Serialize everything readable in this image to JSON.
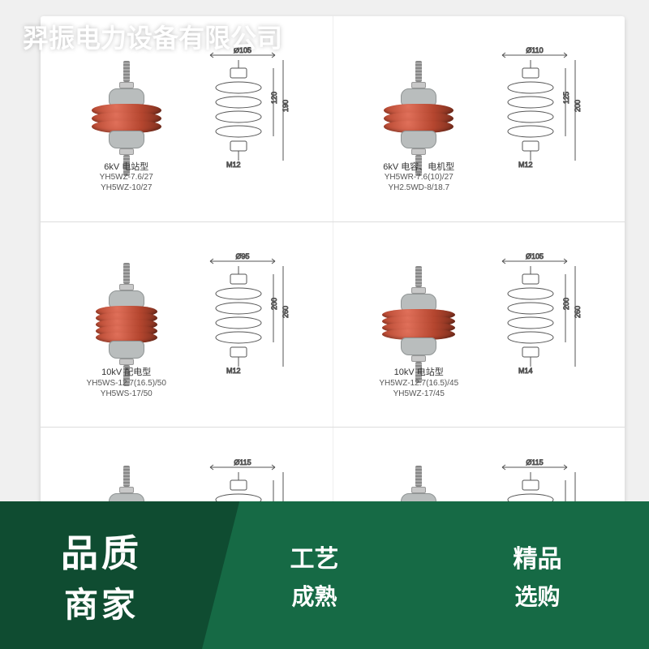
{
  "watermark": "羿振电力设备有限公司",
  "colors": {
    "shed": "#b5462f",
    "cap": "#b9bdbd",
    "cardBg": "#ffffff",
    "divider": "#dcdcdc",
    "promoDark": "#0f4c31",
    "promoLight": "#166a45",
    "techLine": "#555555"
  },
  "products": [
    {
      "sheds": 3,
      "captionType": "6kV 电站型",
      "captionModels": "YH5WZ-7.6/27\nYH5WZ-10/27",
      "tech": {
        "topDia": "Ø105",
        "h1": "120",
        "h2": "190",
        "bolt": "M12"
      }
    },
    {
      "sheds": 3,
      "captionType": "6kV 电容、电机型",
      "captionModels": "YH5WR-7.6(10)/27\nYH2.5WD-8/18.7",
      "tech": {
        "topDia": "Ø110",
        "h1": "125",
        "h2": "200",
        "bolt": "M12"
      }
    },
    {
      "sheds": 5,
      "captionType": "10kV 配电型",
      "captionModels": "YH5WS-12.7(16.5)/50\nYH5WS-17/50",
      "tech": {
        "topDia": "Ø95",
        "h1": "200",
        "h2": "260",
        "bolt": "M12"
      }
    },
    {
      "sheds": 4,
      "captionType": "10kV 电站型",
      "captionModels": "YH5WZ-12.7(16.5)/45\nYH5WZ-17/45",
      "tech": {
        "topDia": "Ø105",
        "h1": "200",
        "h2": "260",
        "bolt": "M14"
      }
    },
    {
      "sheds": 6,
      "captionType": "",
      "captionModels": "",
      "tech": {
        "topDia": "Ø115",
        "h1": "",
        "h2": "",
        "bolt": ""
      }
    },
    {
      "sheds": 6,
      "captionType": "",
      "captionModels": "",
      "tech": {
        "topDia": "Ø115",
        "h1": "",
        "h2": "",
        "bolt": ""
      }
    }
  ],
  "promo": {
    "left1": "品质",
    "left2": "商家",
    "pill1a": "工艺",
    "pill1b": "成熟",
    "pill2a": "精品",
    "pill2b": "选购"
  }
}
